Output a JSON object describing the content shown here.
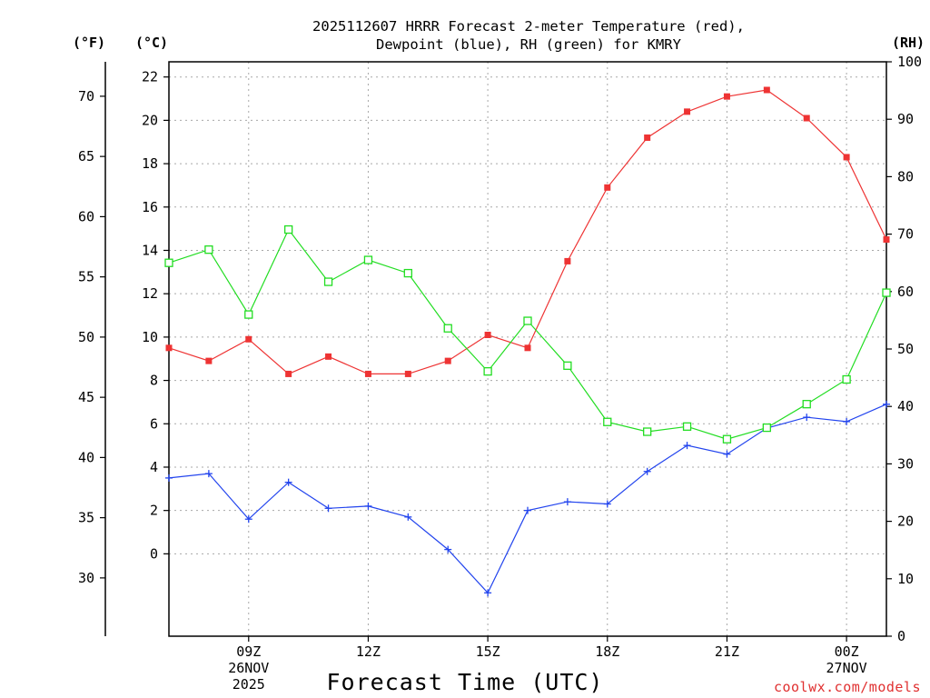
{
  "chart_data": {
    "type": "line",
    "title_lines": [
      "2025112607 HRRR Forecast 2-meter Temperature (red),",
      "Dewpoint (blue), RH (green) for KMRY"
    ],
    "xlabel": "Forecast Time (UTC)",
    "credit": "coolwx.com/models",
    "units": {
      "fahrenheit": "(°F)",
      "celsius": "(°C)",
      "rh": "(RH)"
    },
    "x_hours": [
      7,
      8,
      9,
      10,
      11,
      12,
      13,
      14,
      15,
      16,
      17,
      18,
      19,
      20,
      21,
      22,
      23,
      24,
      25
    ],
    "xlim": [
      7,
      25
    ],
    "x_ticks": [
      {
        "hour": 9,
        "lines": [
          "09Z",
          "26NOV",
          "2025"
        ]
      },
      {
        "hour": 12,
        "lines": [
          "12Z"
        ]
      },
      {
        "hour": 15,
        "lines": [
          "15Z"
        ]
      },
      {
        "hour": 18,
        "lines": [
          "18Z"
        ]
      },
      {
        "hour": 21,
        "lines": [
          "21Z"
        ]
      },
      {
        "hour": 24,
        "lines": [
          "00Z",
          "27NOV"
        ]
      }
    ],
    "celsius_axis": {
      "ylim": [
        -3.8,
        22.7
      ],
      "ticks": [
        0,
        2,
        4,
        6,
        8,
        10,
        12,
        14,
        16,
        18,
        20,
        22
      ]
    },
    "fahrenheit_axis": {
      "ticks": [
        30,
        35,
        40,
        45,
        50,
        55,
        60,
        65,
        70
      ]
    },
    "rh_axis": {
      "ylim": [
        0,
        100
      ],
      "ticks": [
        0,
        10,
        20,
        30,
        40,
        50,
        60,
        70,
        80,
        90,
        100
      ]
    },
    "colors": {
      "temperature": "#ee3333",
      "dewpoint": "#2244ee",
      "rh": "#22dd22",
      "grid": "#a8a8a8"
    },
    "series": [
      {
        "name": "2-meter Temperature",
        "unit": "C",
        "marker": "filled-square",
        "values": [
          9.5,
          8.9,
          9.9,
          8.3,
          9.1,
          8.3,
          8.3,
          8.9,
          10.1,
          9.5,
          13.5,
          16.9,
          19.2,
          20.4,
          21.1,
          21.4,
          20.1,
          18.3,
          14.5
        ]
      },
      {
        "name": "Dewpoint",
        "unit": "C",
        "marker": "plus",
        "values": [
          3.5,
          3.7,
          1.6,
          3.3,
          2.1,
          2.2,
          1.7,
          0.2,
          -1.8,
          2.0,
          2.4,
          2.3,
          3.8,
          5.0,
          4.6,
          5.8,
          6.3,
          6.1,
          6.9
        ]
      },
      {
        "name": "RH",
        "unit": "%",
        "marker": "open-square",
        "values": [
          65,
          67.3,
          56,
          70.8,
          61.7,
          65.5,
          63.2,
          53.6,
          46.1,
          54.9,
          47.1,
          37.3,
          35.6,
          36.5,
          34.3,
          36.3,
          40.4,
          44.7,
          59.8
        ]
      }
    ]
  }
}
